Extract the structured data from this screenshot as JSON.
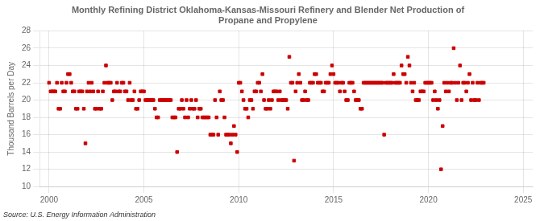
{
  "chart_data": {
    "type": "scatter",
    "title": "Monthly Refining District Oklahoma-Kansas-Missouri Refinery and Blender Net Production of\nPropane and Propylene",
    "ylabel": "Thousand Barrels per Day",
    "source": "Source: U.S. Energy Information Administration",
    "color": "#cc0000",
    "marker": "square",
    "grid": true,
    "xlim": [
      1999.5,
      2025.5
    ],
    "xticks": [
      2000,
      2005,
      2010,
      2015,
      2020,
      2025
    ],
    "ylim": [
      10,
      28
    ],
    "yticks": [
      10,
      12,
      14,
      16,
      18,
      20,
      22,
      24,
      26,
      28
    ],
    "x": [
      2000.0,
      2000.083,
      2000.167,
      2000.25,
      2000.333,
      2000.417,
      2000.5,
      2000.583,
      2000.667,
      2000.75,
      2000.833,
      2000.917,
      2001.0,
      2001.083,
      2001.167,
      2001.25,
      2001.333,
      2001.417,
      2001.5,
      2001.583,
      2001.667,
      2001.75,
      2001.833,
      2001.917,
      2002.0,
      2002.083,
      2002.167,
      2002.25,
      2002.333,
      2002.417,
      2002.5,
      2002.583,
      2002.667,
      2002.75,
      2002.833,
      2002.917,
      2003.0,
      2003.083,
      2003.167,
      2003.25,
      2003.333,
      2003.417,
      2003.5,
      2003.583,
      2003.667,
      2003.75,
      2003.833,
      2003.917,
      2004.0,
      2004.083,
      2004.167,
      2004.25,
      2004.333,
      2004.417,
      2004.5,
      2004.583,
      2004.667,
      2004.75,
      2004.833,
      2004.917,
      2005.0,
      2005.083,
      2005.167,
      2005.25,
      2005.333,
      2005.417,
      2005.5,
      2005.583,
      2005.667,
      2005.75,
      2005.833,
      2005.917,
      2006.0,
      2006.083,
      2006.167,
      2006.25,
      2006.333,
      2006.417,
      2006.5,
      2006.583,
      2006.667,
      2006.75,
      2006.833,
      2006.917,
      2007.0,
      2007.083,
      2007.167,
      2007.25,
      2007.333,
      2007.417,
      2007.5,
      2007.583,
      2007.667,
      2007.75,
      2007.833,
      2007.917,
      2008.0,
      2008.083,
      2008.167,
      2008.25,
      2008.333,
      2008.417,
      2008.5,
      2008.583,
      2008.667,
      2008.75,
      2008.833,
      2008.917,
      2009.0,
      2009.083,
      2009.167,
      2009.25,
      2009.333,
      2009.417,
      2009.5,
      2009.583,
      2009.667,
      2009.75,
      2009.833,
      2009.917,
      2010.0,
      2010.083,
      2010.167,
      2010.25,
      2010.333,
      2010.417,
      2010.5,
      2010.583,
      2010.667,
      2010.75,
      2010.833,
      2010.917,
      2011.0,
      2011.083,
      2011.167,
      2011.25,
      2011.333,
      2011.417,
      2011.5,
      2011.583,
      2011.667,
      2011.75,
      2011.833,
      2011.917,
      2012.0,
      2012.083,
      2012.167,
      2012.25,
      2012.333,
      2012.417,
      2012.5,
      2012.583,
      2012.667,
      2012.75,
      2012.833,
      2012.917,
      2013.0,
      2013.083,
      2013.167,
      2013.25,
      2013.333,
      2013.417,
      2013.5,
      2013.583,
      2013.667,
      2013.75,
      2013.833,
      2013.917,
      2014.0,
      2014.083,
      2014.167,
      2014.25,
      2014.333,
      2014.417,
      2014.5,
      2014.583,
      2014.667,
      2014.75,
      2014.833,
      2014.917,
      2015.0,
      2015.083,
      2015.167,
      2015.25,
      2015.333,
      2015.417,
      2015.5,
      2015.583,
      2015.667,
      2015.75,
      2015.833,
      2015.917,
      2016.0,
      2016.083,
      2016.167,
      2016.25,
      2016.333,
      2016.417,
      2016.5,
      2016.583,
      2016.667,
      2016.75,
      2016.833,
      2016.917,
      2017.0,
      2017.083,
      2017.167,
      2017.25,
      2017.333,
      2017.417,
      2017.5,
      2017.583,
      2017.667,
      2017.75,
      2017.833,
      2017.917,
      2018.0,
      2018.083,
      2018.167,
      2018.25,
      2018.333,
      2018.417,
      2018.5,
      2018.583,
      2018.667,
      2018.75,
      2018.833,
      2018.917,
      2019.0,
      2019.083,
      2019.167,
      2019.25,
      2019.333,
      2019.417,
      2019.5,
      2019.583,
      2019.667,
      2019.75,
      2019.833,
      2019.917,
      2020.0,
      2020.083,
      2020.167,
      2020.25,
      2020.333,
      2020.417,
      2020.5,
      2020.583,
      2020.667,
      2020.75,
      2020.833,
      2020.917,
      2021.0,
      2021.083,
      2021.167,
      2021.25,
      2021.333,
      2021.417,
      2021.5,
      2021.583,
      2021.667,
      2021.75,
      2021.833,
      2021.917,
      2022.0,
      2022.083,
      2022.167,
      2022.25,
      2022.333,
      2022.417,
      2022.5,
      2022.583,
      2022.667,
      2022.75,
      2022.833,
      2022.917
    ],
    "values": [
      22,
      21,
      21,
      21,
      21,
      22,
      19,
      19,
      22,
      21,
      21,
      22,
      23,
      23,
      22,
      21,
      21,
      19,
      19,
      21,
      21,
      21,
      19,
      15,
      21,
      22,
      21,
      22,
      21,
      19,
      19,
      21,
      19,
      19,
      21,
      22,
      24,
      22,
      22,
      22,
      20,
      21,
      21,
      22,
      21,
      21,
      22,
      22,
      21,
      21,
      20,
      22,
      20,
      20,
      21,
      19,
      19,
      20,
      21,
      21,
      21,
      20,
      20,
      20,
      20,
      20,
      20,
      19,
      18,
      18,
      20,
      20,
      20,
      20,
      20,
      20,
      20,
      20,
      18,
      18,
      18,
      14,
      19,
      19,
      20,
      19,
      18,
      20,
      18,
      19,
      20,
      19,
      19,
      20,
      18,
      19,
      19,
      18,
      18,
      18,
      18,
      18,
      16,
      16,
      16,
      20,
      18,
      16,
      21,
      20,
      20,
      18,
      16,
      16,
      16,
      15,
      16,
      17,
      16,
      14,
      22,
      22,
      21,
      20,
      19,
      19,
      18,
      20,
      20,
      19,
      21,
      21,
      22,
      22,
      21,
      23,
      20,
      19,
      19,
      20,
      19,
      20,
      21,
      21,
      21,
      20,
      21,
      20,
      20,
      20,
      20,
      19,
      25,
      22,
      22,
      13,
      21,
      22,
      23,
      22,
      20,
      20,
      21,
      20,
      20,
      22,
      22,
      22,
      23,
      23,
      22,
      22,
      22,
      21,
      21,
      22,
      22,
      22,
      23,
      24,
      23,
      22,
      22,
      22,
      21,
      22,
      22,
      21,
      20,
      20,
      22,
      22,
      22,
      21,
      20,
      20,
      20,
      19,
      19,
      22,
      22,
      22,
      22,
      22,
      22,
      22,
      22,
      22,
      22,
      22,
      22,
      22,
      16,
      22,
      22,
      22,
      22,
      22,
      23,
      22,
      22,
      22,
      22,
      24,
      23,
      23,
      22,
      25,
      24,
      22,
      21,
      22,
      20,
      20,
      20,
      21,
      21,
      21,
      22,
      22,
      22,
      22,
      22,
      20,
      21,
      20,
      19,
      20,
      12,
      17,
      22,
      21,
      22,
      21,
      22,
      22,
      26,
      22,
      20,
      22,
      24,
      20,
      22,
      22,
      21,
      22,
      23,
      20,
      22,
      20,
      20,
      22,
      20,
      22,
      22,
      22
    ]
  }
}
